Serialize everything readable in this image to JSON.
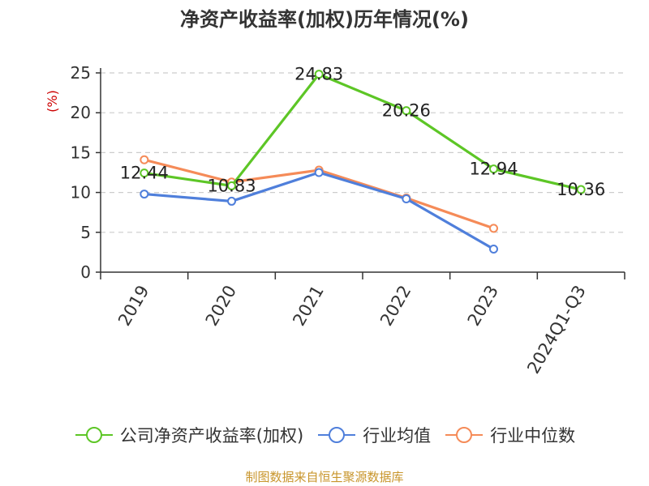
{
  "chart_data": {
    "type": "line",
    "title": "净资产收益率(加权)历年情况(%)",
    "ylabel": "(%)",
    "xlabel": "",
    "categories": [
      "2019",
      "2020",
      "2021",
      "2022",
      "2023",
      "2024Q1-Q3"
    ],
    "ylim": [
      0,
      25
    ],
    "yticks": [
      0,
      5,
      10,
      15,
      20,
      25
    ],
    "grid": true,
    "legend_position": "bottom",
    "series": [
      {
        "name": "公司净资产收益率(加权)",
        "color": "#5dc626",
        "values": [
          12.44,
          10.83,
          24.83,
          20.26,
          12.94,
          10.36
        ],
        "show_labels": true
      },
      {
        "name": "行业均值",
        "color": "#4f7fdb",
        "values": [
          9.8,
          8.9,
          12.5,
          9.2,
          2.9,
          null
        ],
        "show_labels": false
      },
      {
        "name": "行业中位数",
        "color": "#f58b58",
        "values": [
          14.1,
          11.3,
          12.8,
          9.3,
          5.5,
          null
        ],
        "show_labels": false
      }
    ]
  },
  "source_text": "制图数据来自恒生聚源数据库",
  "colors": {
    "title": "#333333",
    "axis": "#333333",
    "grid": "#cccccc",
    "ylabel": "#cc0000",
    "source": "#c8952b"
  }
}
